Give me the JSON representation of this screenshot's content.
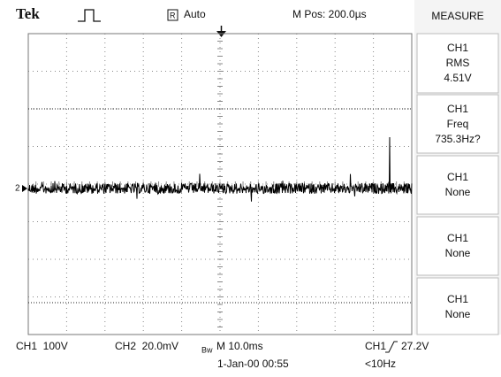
{
  "header": {
    "brand": "Tek",
    "trigger_state": "Auto",
    "position": "M Pos: 200.0µs"
  },
  "measure": {
    "title": "MEASURE",
    "items": [
      {
        "source": "CH1",
        "type": "RMS",
        "value": "4.51V"
      },
      {
        "source": "CH1",
        "type": "Freq",
        "value": "735.3Hz?"
      },
      {
        "source": "CH1",
        "type": "None"
      },
      {
        "source": "CH1",
        "type": "None"
      },
      {
        "source": "CH1",
        "type": "None"
      }
    ]
  },
  "channel_marker": "2",
  "footer": {
    "ch1_scale": "CH1  100V",
    "ch2_scale": "CH2  20.0mV",
    "bandwidth": "Bw",
    "timebase": "M 10.0ms",
    "trigger_source": "CH1",
    "trigger_level": "27.2V",
    "date": "1-Jan-00 00:55",
    "trigger_freq": "<10Hz"
  }
}
